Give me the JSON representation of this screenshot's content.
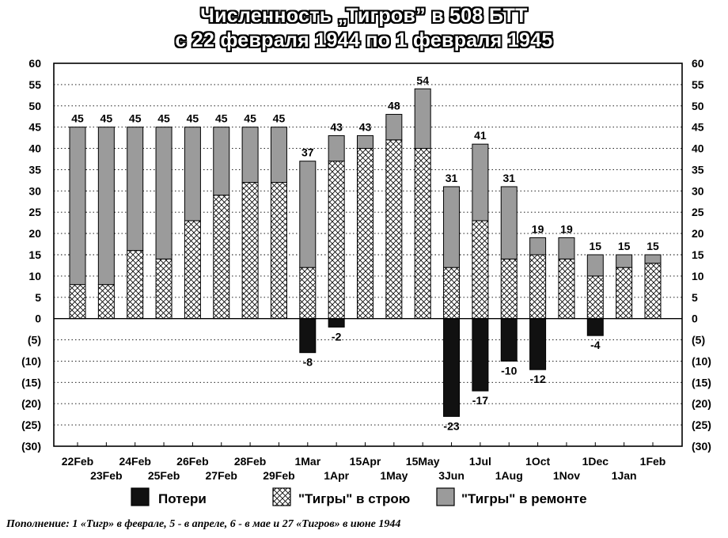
{
  "chart_data": {
    "type": "bar",
    "stacked": true,
    "title_line1": "Численность „Тигров” в 508 БТТ",
    "title_line2": "с 22 февраля 1944 по 1 февраля 1945",
    "xlabel": "",
    "ylabel": "",
    "ylim": [
      -30,
      60
    ],
    "y_step": 5,
    "y_tick_labels": [
      "60",
      "55",
      "50",
      "45",
      "40",
      "35",
      "30",
      "25",
      "20",
      "15",
      "10",
      "5",
      "0",
      "(5)",
      "(10)",
      "(15)",
      "(20)",
      "(25)",
      "(30)"
    ],
    "grid": true,
    "legend_position": "bottom",
    "categories_top_row": [
      "22Feb",
      "24Feb",
      "26Feb",
      "28Feb",
      "1Mar",
      "15Apr",
      "15May",
      "1Jul",
      "1Oct",
      "1Dec",
      "1Feb"
    ],
    "categories_bottom_row": [
      "23Feb",
      "25Feb",
      "27Feb",
      "29Feb",
      "1Apr",
      "1May",
      "3Jun",
      "1Aug",
      "1Nov",
      "1Jan"
    ],
    "categories": [
      "22Feb",
      "23Feb",
      "24Feb",
      "25Feb",
      "26Feb",
      "27Feb",
      "28Feb",
      "29Feb",
      "1Mar",
      "1Apr",
      "15Apr",
      "1May",
      "15May",
      "3Jun",
      "1Jul",
      "1Aug",
      "1Oct",
      "1Nov",
      "1Dec",
      "1Jan",
      "1Feb"
    ],
    "series": [
      {
        "name": "\"Тигры\" в строю",
        "pattern": "crosshatch",
        "values": [
          8,
          8,
          16,
          14,
          23,
          29,
          32,
          32,
          12,
          37,
          40,
          42,
          40,
          12,
          23,
          14,
          15,
          14,
          10,
          12,
          13
        ]
      },
      {
        "name": "\"Тигры\" в ремонте",
        "color": "#9b9b9b",
        "values": [
          37,
          37,
          29,
          31,
          22,
          16,
          13,
          13,
          25,
          6,
          3,
          6,
          14,
          19,
          18,
          17,
          4,
          5,
          5,
          3,
          2
        ]
      },
      {
        "name": "Потери",
        "color": "#111111",
        "values": [
          0,
          0,
          0,
          0,
          0,
          0,
          0,
          0,
          -8,
          -2,
          0,
          0,
          0,
          -23,
          -17,
          -10,
          -12,
          0,
          -4,
          0,
          0
        ]
      }
    ],
    "totals": [
      45,
      45,
      45,
      45,
      45,
      45,
      45,
      45,
      37,
      43,
      43,
      48,
      54,
      31,
      41,
      31,
      19,
      19,
      15,
      15,
      15
    ],
    "loss_labels": [
      "",
      "",
      "",
      "",
      "",
      "",
      "",
      "",
      "-8",
      "-2",
      "",
      "",
      "",
      "-23",
      "-17",
      "-10",
      "-12",
      "",
      "-4",
      "",
      ""
    ]
  },
  "footnote": "Пополнение: 1 «Тигр» в феврале, 5 - в апреле, 6 - в мае и 27 «Тигров» в июне 1944"
}
